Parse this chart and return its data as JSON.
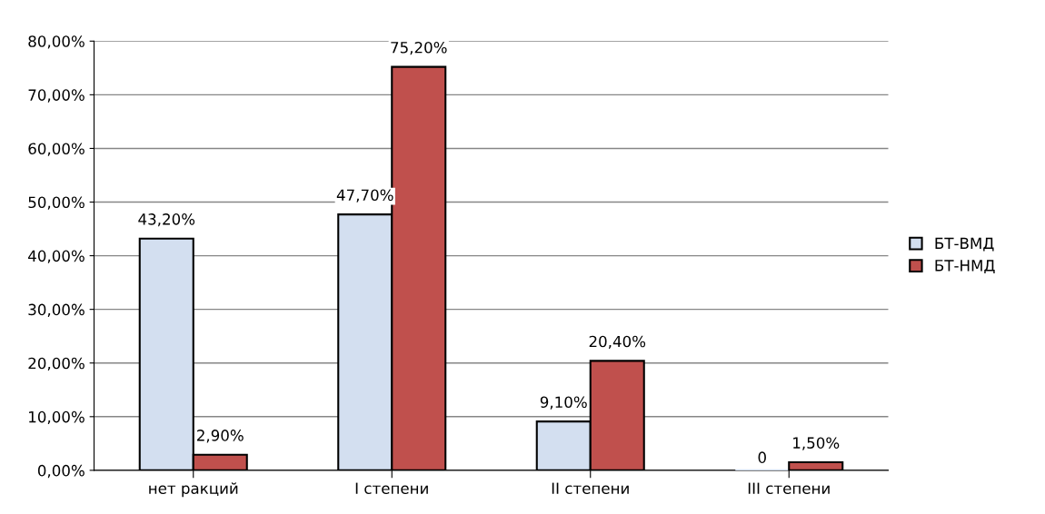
{
  "chart_data": {
    "type": "bar",
    "categories": [
      "нет ракций",
      "I степени",
      "II степени",
      "III степени"
    ],
    "series": [
      {
        "name": "БТ-ВМД",
        "color": "#d3dff0",
        "values": [
          43.2,
          47.7,
          9.1,
          0
        ],
        "value_labels": [
          "43,20%",
          "47,70%",
          "9,10%",
          "0"
        ]
      },
      {
        "name": "БТ-НМД",
        "color": "#c0504d",
        "values": [
          2.9,
          75.2,
          20.4,
          1.5
        ],
        "value_labels": [
          "2,90%",
          "75,20%",
          "20,40%",
          "1,50%"
        ]
      }
    ],
    "ylim": [
      0,
      80
    ],
    "yticks": [
      {
        "value": 0,
        "label": "0,00%"
      },
      {
        "value": 10,
        "label": "10,00%"
      },
      {
        "value": 20,
        "label": "20,00%"
      },
      {
        "value": 30,
        "label": "30,00%"
      },
      {
        "value": 40,
        "label": "40,00%"
      },
      {
        "value": 50,
        "label": "50,00%"
      },
      {
        "value": 60,
        "label": "60,00%"
      },
      {
        "value": 70,
        "label": "70,00%"
      },
      {
        "value": 80,
        "label": "80,00%"
      }
    ],
    "grid": "y",
    "legend": "right"
  }
}
